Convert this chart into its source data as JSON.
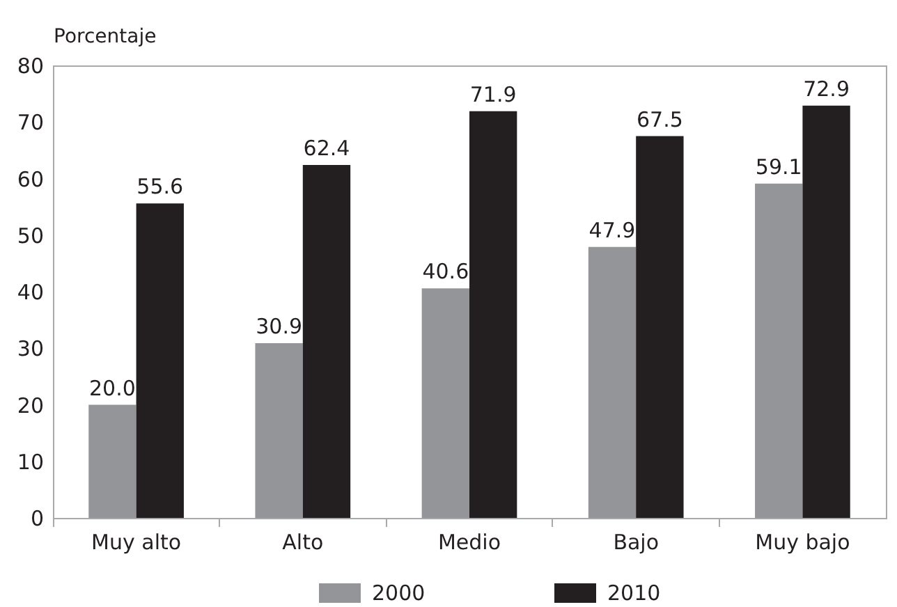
{
  "chart_data": {
    "type": "bar",
    "ylabel": "Porcentaje",
    "categories": [
      "Muy alto",
      "Alto",
      "Medio",
      "Bajo",
      "Muy bajo"
    ],
    "series": [
      {
        "name": "2000",
        "color": "#939598",
        "values": [
          20.0,
          30.9,
          40.6,
          47.9,
          59.1
        ],
        "value_labels": [
          "20.0",
          "30.9",
          "40.6",
          "47.9",
          "59.1"
        ]
      },
      {
        "name": "2010",
        "color": "#231f20",
        "values": [
          55.6,
          62.4,
          71.9,
          67.5,
          72.9
        ],
        "value_labels": [
          "55.6",
          "62.4",
          "71.9",
          "67.5",
          "72.9"
        ]
      }
    ],
    "ylim": [
      0,
      80
    ],
    "yticks": [
      0,
      10,
      20,
      30,
      40,
      50,
      60,
      70,
      80
    ],
    "legend": "bottom",
    "grid": false
  }
}
